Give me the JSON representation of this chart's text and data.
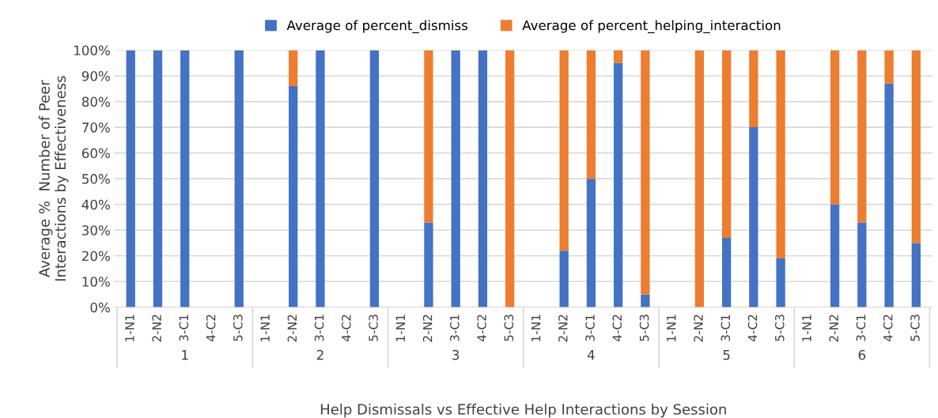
{
  "chart_data": {
    "type": "bar",
    "stacked": true,
    "xlabel": "Help Dismissals vs Effective Help Interactions by Session",
    "ylabel": "Average %  Number of Peer\nInteractions by Effectiveness",
    "categories": [
      "1-N1",
      "2-N2",
      "3-C1",
      "4-C2",
      "5-C3",
      "1-N1",
      "2-N2",
      "3-C1",
      "4-C2",
      "5-C3",
      "1-N1",
      "2-N2",
      "3-C1",
      "4-C2",
      "5-C3",
      "1-N1",
      "2-N2",
      "3-C1",
      "4-C2",
      "5-C3",
      "1-N1",
      "2-N2",
      "3-C1",
      "4-C2",
      "5-C3",
      "1-N1",
      "2-N2",
      "3-C1",
      "4-C2",
      "5-C3"
    ],
    "annotations": [
      "1",
      "2",
      "3",
      "4",
      "5",
      "6"
    ],
    "series": [
      {
        "name": "Average of percent_dismiss",
        "color": "#4472c4",
        "values": [
          100,
          100,
          100,
          null,
          100,
          null,
          86,
          100,
          null,
          100,
          null,
          33,
          100,
          100,
          0,
          null,
          22,
          50,
          95,
          5,
          null,
          0,
          27,
          70,
          19,
          null,
          40,
          33,
          87,
          25
        ]
      },
      {
        "name": "Average of percent_helping_interaction",
        "color": "#ed7d31",
        "values": [
          0,
          0,
          0,
          null,
          0,
          null,
          14,
          0,
          null,
          0,
          null,
          67,
          0,
          0,
          100,
          null,
          78,
          50,
          5,
          95,
          null,
          100,
          73,
          30,
          81,
          null,
          60,
          67,
          13,
          75
        ]
      }
    ],
    "ylim": [
      0,
      100
    ],
    "yticks": [
      {
        "value": 0,
        "label": "0%"
      },
      {
        "value": 10,
        "label": "10%"
      },
      {
        "value": 20,
        "label": "20%"
      },
      {
        "value": 30,
        "label": "30%"
      },
      {
        "value": 40,
        "label": "40%"
      },
      {
        "value": 50,
        "label": "50%"
      },
      {
        "value": 60,
        "label": "60%"
      },
      {
        "value": 70,
        "label": "70%"
      },
      {
        "value": 80,
        "label": "80%"
      },
      {
        "value": 90,
        "label": "90%"
      },
      {
        "value": 100,
        "label": "100%"
      }
    ],
    "grid": "y",
    "legend": "top"
  }
}
